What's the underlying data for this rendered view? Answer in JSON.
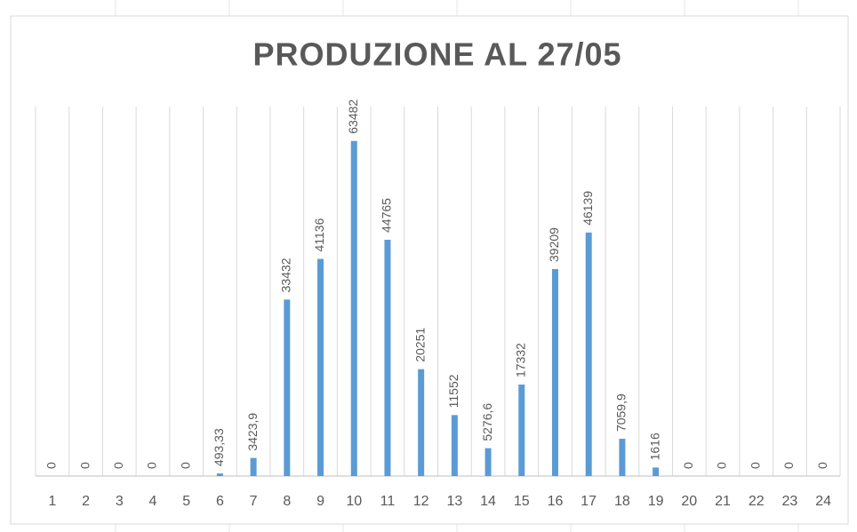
{
  "chart_data": {
    "type": "bar",
    "title": "PRODUZIONE AL 27/05",
    "categories": [
      "1",
      "2",
      "3",
      "4",
      "5",
      "6",
      "7",
      "8",
      "9",
      "10",
      "11",
      "12",
      "13",
      "14",
      "15",
      "16",
      "17",
      "18",
      "19",
      "20",
      "21",
      "22",
      "23",
      "24"
    ],
    "values": [
      0,
      0,
      0,
      0,
      0,
      493.33,
      3423.9,
      33432,
      41136,
      63482,
      44765,
      20251,
      11552,
      5276.6,
      17332,
      39209,
      46139,
      7059.9,
      1616,
      0,
      0,
      0,
      0,
      0
    ],
    "value_labels": [
      "0",
      "0",
      "0",
      "0",
      "0",
      "493,33",
      "3423,9",
      "33432",
      "41136",
      "63482",
      "44765",
      "20251",
      "11552",
      "5276,6",
      "17332",
      "39209",
      "46139",
      "7059,9",
      "1616",
      "0",
      "0",
      "0",
      "0",
      "0"
    ],
    "color": "#5b9bd5",
    "ylim": [
      0,
      70000
    ],
    "grid": true
  }
}
